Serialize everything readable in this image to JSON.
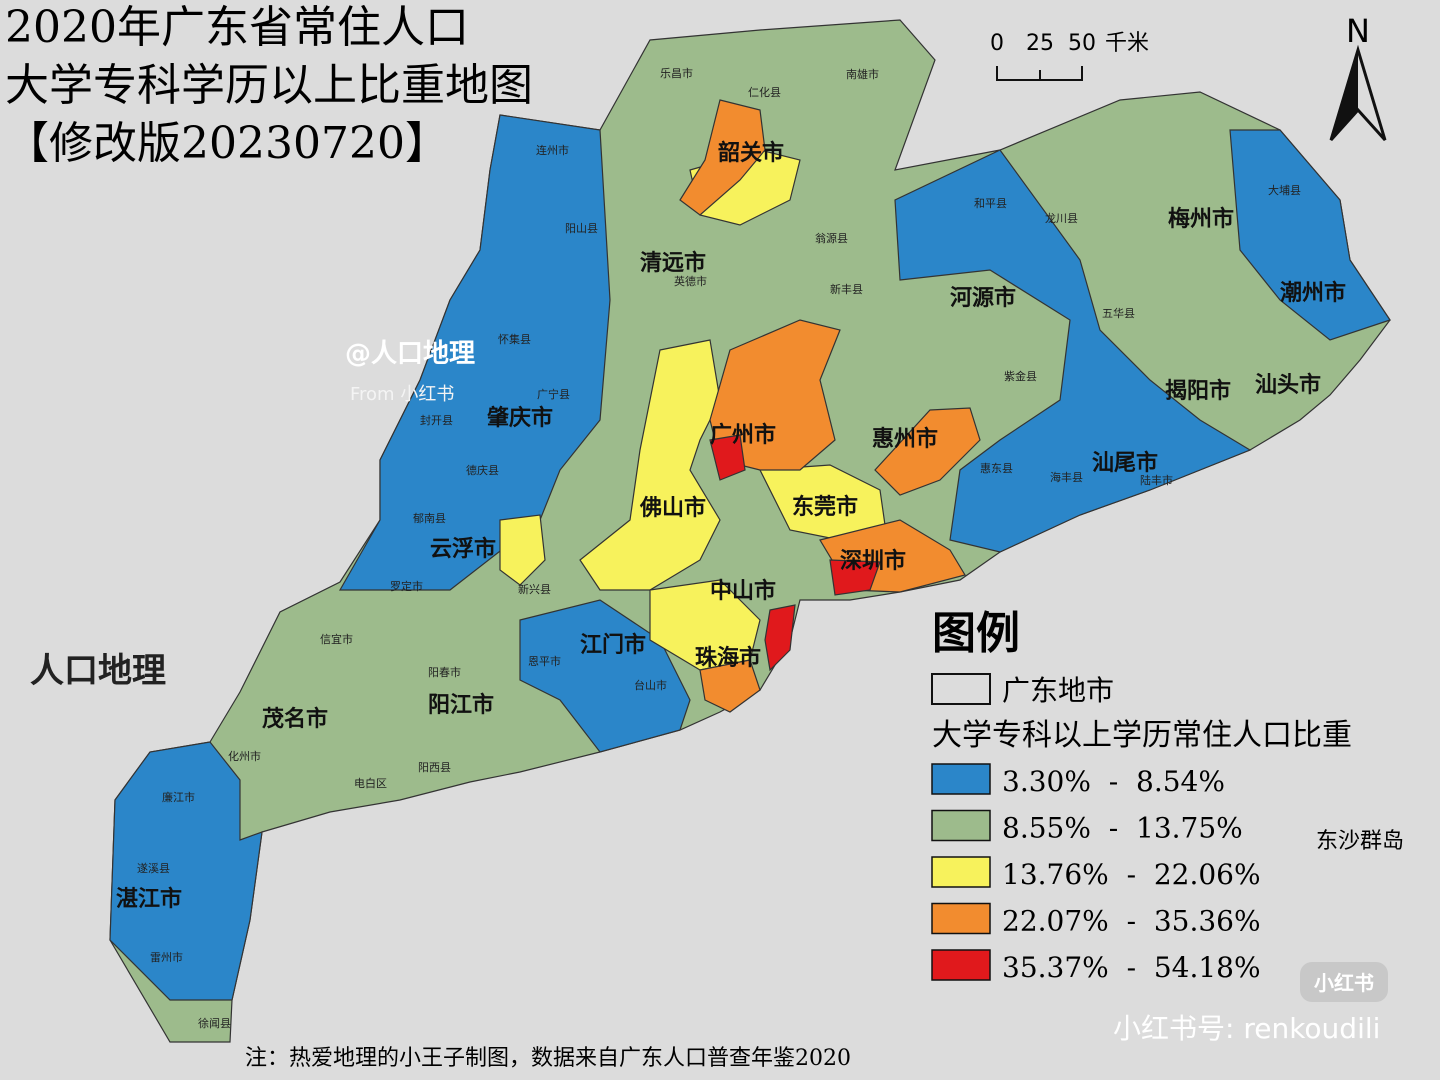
{
  "title": [
    "2020年广东省常住人口",
    "大学专科学历以上比重地图",
    "【修改版20230720】"
  ],
  "scale_bar": {
    "labels": [
      "0",
      "25",
      "50"
    ],
    "unit": "千米"
  },
  "north": "N",
  "legend": {
    "title": "图例",
    "boundary": "广东地市",
    "classes_title": "大学专科以上学历常住人口比重",
    "classes": [
      {
        "label": "3.30%  -  8.54%",
        "color": "#2b86c9"
      },
      {
        "label": "8.55%  -  13.75%",
        "color": "#9dbb8c"
      },
      {
        "label": "13.76%  -  22.06%",
        "color": "#f7f25c"
      },
      {
        "label": "22.07%  -  35.36%",
        "color": "#f28c2f"
      },
      {
        "label": "35.37%  -  54.18%",
        "color": "#e0191c"
      }
    ]
  },
  "cities": [
    "韶关市",
    "清远市",
    "河源市",
    "梅州市",
    "潮州市",
    "汕头市",
    "揭阳市",
    "汕尾市",
    "惠州市",
    "广州市",
    "东莞市",
    "深圳市",
    "佛山市",
    "肇庆市",
    "云浮市",
    "中山市",
    "江门市",
    "珠海市",
    "阳江市",
    "茂名市",
    "湛江市"
  ],
  "counties": [
    "乐昌市",
    "仁化县",
    "南雄市",
    "连州市",
    "阳山县",
    "英德市",
    "翁源县",
    "新丰县",
    "和平县",
    "龙川县",
    "五华县",
    "大埔县",
    "紫金县",
    "惠东县",
    "海丰县",
    "陆丰市",
    "怀集县",
    "广宁县",
    "封开县",
    "德庆县",
    "郁南县",
    "罗定市",
    "新兴县",
    "台山市",
    "恩平市",
    "阳春市",
    "阳西县",
    "信宜市",
    "化州市",
    "电白区",
    "廉江市",
    "遂溪县",
    "雷州市",
    "徐闻县"
  ],
  "dongsha": "东沙群岛",
  "watermarks": [
    "@人口地理",
    "From 小红书",
    "人口地理",
    "小红书",
    "小红书号: renkoudili"
  ],
  "note": "注：热爱地理的小王子制图，数据来自广东人口普查年鉴2020"
}
